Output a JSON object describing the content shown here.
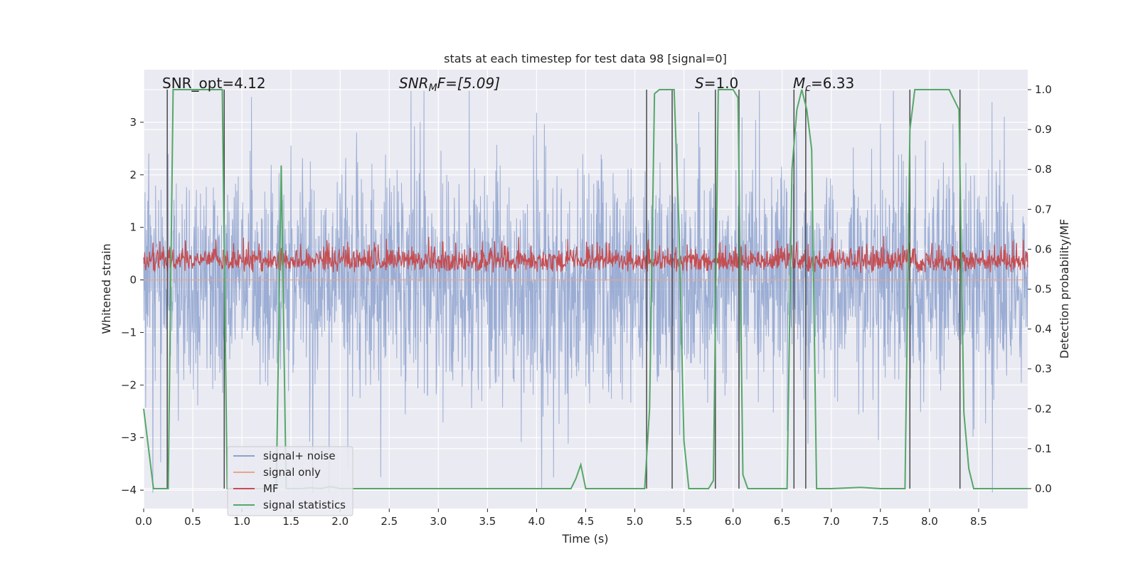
{
  "chart_data": {
    "type": "line",
    "title": "stats at each timestep for test data 98 [signal=0]",
    "xlabel": "Time (s)",
    "ylabel": "Whitened strain",
    "ylabel_right": "Detection probability/MF",
    "xlim": [
      0.0,
      9.0
    ],
    "ylim": [
      -4.35,
      4.0
    ],
    "ylim_right": [
      -0.05,
      1.05
    ],
    "xticks": [
      "0.0",
      "0.5",
      "1.0",
      "1.5",
      "2.0",
      "2.5",
      "3.0",
      "3.5",
      "4.0",
      "4.5",
      "5.0",
      "5.5",
      "6.0",
      "6.5",
      "7.0",
      "7.5",
      "8.0",
      "8.5"
    ],
    "yticks_left": [
      "3",
      "2",
      "1",
      "0",
      "−1",
      "−2",
      "−3",
      "−4"
    ],
    "yticks_right": [
      "1.0",
      "0.9",
      "0.8",
      "0.7",
      "0.6",
      "0.5",
      "0.4",
      "0.3",
      "0.2",
      "0.1",
      "0.0"
    ],
    "annotations": {
      "snr_opt": "SNR_opt=4.12",
      "snr_mf": "SNR",
      "snr_mf_sub": "M",
      "snr_mf_rest": "F=[5.09]",
      "s": "S",
      "s_rest": "=1.0",
      "mc": "M",
      "mc_sub": "c",
      "mc_rest": "=6.33"
    },
    "legend": {
      "position": "lower-left",
      "entries": [
        {
          "label": "signal+ noise",
          "color": "#8da2cf"
        },
        {
          "label": "signal only",
          "color": "#e8a58c"
        },
        {
          "label": "MF",
          "color": "#c44e52"
        },
        {
          "label": "signal statistics",
          "color": "#55a868"
        }
      ]
    },
    "series": [
      {
        "name": "signal statistics",
        "axis": "right",
        "x": [
          0.0,
          0.05,
          0.1,
          0.15,
          0.2,
          0.25,
          0.3,
          0.35,
          0.4,
          0.45,
          0.5,
          0.55,
          0.6,
          0.65,
          0.7,
          0.75,
          0.8,
          0.85,
          0.9,
          0.95,
          1.0,
          1.05,
          1.1,
          1.15,
          1.2,
          1.25,
          1.3,
          1.35,
          1.4,
          1.45,
          1.5,
          1.55,
          1.6,
          1.7,
          1.8,
          1.9,
          2.0,
          2.1,
          2.2,
          4.3,
          4.35,
          4.4,
          4.45,
          4.5,
          4.6,
          4.7,
          5.05,
          5.1,
          5.15,
          5.2,
          5.25,
          5.3,
          5.35,
          5.4,
          5.45,
          5.5,
          5.55,
          5.6,
          5.7,
          5.75,
          5.8,
          5.85,
          5.9,
          5.95,
          6.0,
          6.05,
          6.1,
          6.15,
          6.2,
          6.3,
          6.5,
          6.55,
          6.6,
          6.65,
          6.7,
          6.75,
          6.8,
          6.85,
          6.9,
          6.95,
          7.0,
          7.3,
          7.5,
          7.75,
          7.8,
          7.85,
          7.9,
          8.0,
          8.1,
          8.2,
          8.3,
          8.35,
          8.4,
          8.45,
          8.5,
          8.6,
          9.0
        ],
        "y": [
          0.2,
          0.1,
          0.0,
          0.0,
          0.0,
          0.0,
          1.0,
          1.0,
          1.0,
          1.0,
          1.0,
          1.0,
          1.0,
          1.0,
          1.0,
          1.0,
          1.0,
          0.0,
          0.0,
          0.0,
          0.0,
          0.0,
          0.0,
          0.0,
          0.0,
          0.0,
          0.0,
          0.0,
          0.81,
          0.0,
          0.0,
          0.0,
          0.0,
          0.002,
          0.0,
          0.005,
          0.0,
          0.0,
          0.0,
          0.0,
          0.0,
          0.025,
          0.06,
          0.0,
          0.0,
          0.0,
          0.0,
          0.0,
          0.2,
          0.99,
          1.0,
          1.0,
          1.0,
          1.0,
          0.65,
          0.12,
          0.0,
          0.0,
          0.0,
          0.0,
          0.02,
          1.0,
          1.0,
          1.0,
          1.0,
          0.98,
          0.035,
          0.0,
          0.0,
          0.0,
          0.0,
          0.0,
          0.8,
          0.95,
          1.0,
          0.95,
          0.85,
          0.0,
          0.0,
          0.0,
          0.0,
          0.003,
          0.0,
          0.0,
          0.9,
          1.0,
          1.0,
          1.0,
          1.0,
          1.0,
          0.95,
          0.19,
          0.05,
          0.0,
          0.0,
          0.0,
          0.0
        ]
      },
      {
        "name": "detection markers",
        "axis": "right",
        "x": [
          0.24,
          0.82,
          5.12,
          5.38,
          5.82,
          6.06,
          6.62,
          6.74,
          7.8,
          8.31
        ]
      }
    ]
  }
}
